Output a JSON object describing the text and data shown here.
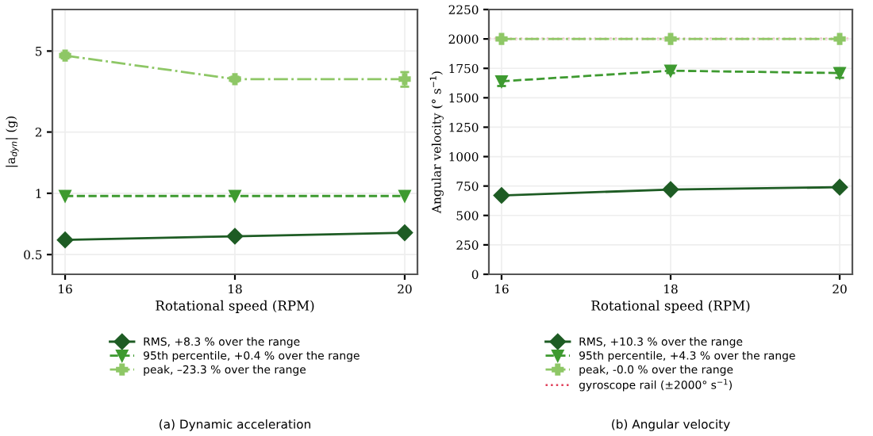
{
  "chart_data": [
    {
      "type": "line",
      "title": "(a) Dynamic acceleration",
      "xlabel": "Rotational speed (RPM)",
      "ylabel": "|a$_{dyn}$| (g)",
      "x": [
        16,
        18,
        20
      ],
      "xlim": [
        15.85,
        20.15
      ],
      "xticks": [
        16,
        18,
        20
      ],
      "log": "y",
      "ylim": [
        0.4,
        8
      ],
      "yticks": [
        0.5,
        1,
        2,
        5
      ],
      "grid": true,
      "legend": "bottom",
      "series": [
        {
          "name": "RMS, +8.3 % over the range",
          "color": "#1e5c24",
          "values": [
            0.59,
            0.615,
            0.64
          ],
          "marker": "diamond",
          "line_style": "solid"
        },
        {
          "name": "95th percentile, +0.4 % over the range",
          "color": "#3e9a30",
          "values": [
            0.97,
            0.97,
            0.97
          ],
          "marker": "triangle",
          "line_style": "dashed"
        },
        {
          "name": "peak, –23.3 % over the range",
          "color": "#8ec766",
          "values": [
            4.75,
            3.64,
            3.64
          ],
          "errors": [
            0.15,
            0.1,
            0.3
          ],
          "marker": "cross",
          "line_style": "dashdot"
        }
      ]
    },
    {
      "type": "line",
      "title": "(b) Angular velocity",
      "xlabel": "Rotational speed (RPM)",
      "ylabel": "Angular velocity (° s$^{−1}$)",
      "x": [
        16,
        18,
        20
      ],
      "xlim": [
        15.85,
        20.15
      ],
      "xticks": [
        16,
        18,
        20
      ],
      "ylim": [
        0,
        2250
      ],
      "yticks": [
        0,
        250,
        500,
        750,
        1000,
        1250,
        1500,
        1750,
        2000,
        2250
      ],
      "grid": true,
      "legend": "bottom",
      "series": [
        {
          "name": "RMS, +10.3 % over the range",
          "color": "#1e5c24",
          "values": [
            670,
            720,
            740
          ],
          "marker": "diamond",
          "line_style": "solid"
        },
        {
          "name": "95th percentile, +4.3 % over the range",
          "color": "#3e9a30",
          "values": [
            1640,
            1730,
            1710
          ],
          "errors": [
            40,
            20,
            40
          ],
          "marker": "triangle",
          "line_style": "dashed"
        },
        {
          "name": "peak, -0.0 % over the range",
          "color": "#8ec766",
          "values": [
            2000,
            2000,
            2000
          ],
          "marker": "cross",
          "line_style": "dashdot"
        }
      ],
      "ref_lines": [
        {
          "axis": "y",
          "value": 2000,
          "label": "gyroscope rail (±2000° s$^{−1}$)",
          "color": "#e0405a",
          "line_style": "dotted"
        }
      ]
    }
  ]
}
